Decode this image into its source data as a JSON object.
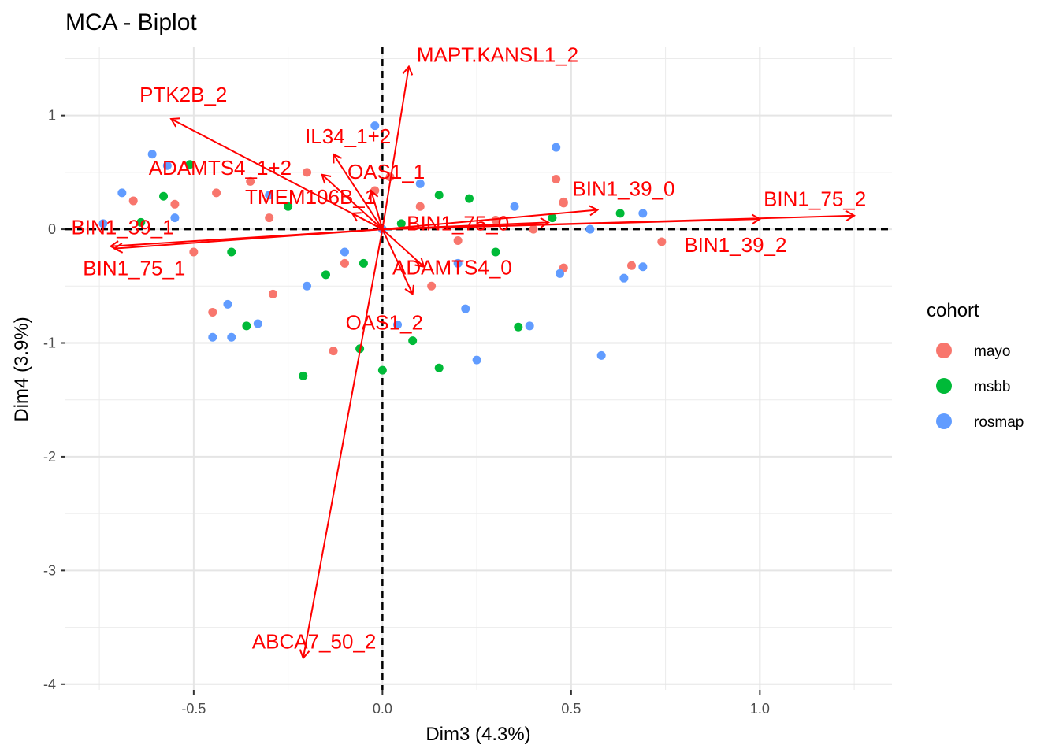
{
  "chart_data": {
    "type": "scatter",
    "title": "MCA - Biplot",
    "xlabel": "Dim3 (4.3%)",
    "ylabel": "Dim4 (3.9%)",
    "xlim": [
      -0.84,
      1.35
    ],
    "ylim": [
      -4.05,
      1.6
    ],
    "x_ticks": [
      -0.5,
      0.0,
      0.5,
      1.0
    ],
    "x_tick_labels": [
      "-0.5",
      "0.0",
      "0.5",
      "1.0"
    ],
    "y_ticks": [
      1,
      0,
      -1,
      -2,
      -3,
      -4
    ],
    "y_tick_labels": [
      "1",
      "0",
      "-1",
      "-2",
      "-3",
      "-4"
    ],
    "grid": true,
    "reference_lines": {
      "x": 0,
      "y": 0,
      "style": "dashed"
    },
    "legend": {
      "title": "cohort",
      "position": "right",
      "entries": [
        {
          "label": "mayo",
          "color": "#F8766D"
        },
        {
          "label": "msbb",
          "color": "#00BA38"
        },
        {
          "label": "rosmap",
          "color": "#619CFF"
        }
      ]
    },
    "series": [
      {
        "name": "mayo",
        "color": "#F8766D",
        "points": [
          [
            -0.66,
            0.25
          ],
          [
            -0.55,
            0.22
          ],
          [
            -0.44,
            0.32
          ],
          [
            -0.35,
            0.42
          ],
          [
            -0.2,
            0.5
          ],
          [
            0.02,
            0.46
          ],
          [
            0.46,
            0.44
          ],
          [
            0.48,
            0.24
          ],
          [
            0.48,
            0.23
          ],
          [
            0.74,
            -0.11
          ],
          [
            0.66,
            -0.32
          ],
          [
            -0.45,
            -0.73
          ],
          [
            -0.29,
            -0.57
          ],
          [
            -0.13,
            -1.07
          ],
          [
            0.13,
            -0.5
          ],
          [
            0.48,
            -0.34
          ],
          [
            -0.02,
            0.34
          ],
          [
            0.3,
            0.08
          ],
          [
            -0.1,
            -0.3
          ],
          [
            0.2,
            -0.1
          ],
          [
            -0.3,
            0.1
          ],
          [
            0.1,
            0.2
          ],
          [
            0.4,
            0.0
          ],
          [
            -0.5,
            -0.2
          ]
        ]
      },
      {
        "name": "msbb",
        "color": "#00BA38",
        "points": [
          [
            -0.64,
            0.06
          ],
          [
            -0.58,
            0.29
          ],
          [
            -0.51,
            0.57
          ],
          [
            -0.36,
            -0.85
          ],
          [
            -0.21,
            -1.29
          ],
          [
            -0.06,
            -1.05
          ],
          [
            0.0,
            -1.24
          ],
          [
            0.08,
            -0.98
          ],
          [
            0.15,
            -1.22
          ],
          [
            0.36,
            -0.86
          ],
          [
            0.63,
            0.14
          ],
          [
            0.23,
            0.27
          ],
          [
            -0.15,
            -0.4
          ],
          [
            0.05,
            0.05
          ],
          [
            -0.4,
            -0.2
          ],
          [
            0.3,
            -0.2
          ],
          [
            0.15,
            0.3
          ],
          [
            -0.25,
            0.2
          ],
          [
            0.45,
            0.1
          ],
          [
            -0.05,
            -0.3
          ]
        ]
      },
      {
        "name": "rosmap",
        "color": "#619CFF",
        "points": [
          [
            -0.74,
            0.05
          ],
          [
            -0.69,
            0.32
          ],
          [
            -0.61,
            0.66
          ],
          [
            -0.57,
            0.56
          ],
          [
            -0.45,
            -0.95
          ],
          [
            -0.41,
            -0.66
          ],
          [
            -0.4,
            -0.95
          ],
          [
            -0.33,
            -0.83
          ],
          [
            -0.02,
            0.91
          ],
          [
            0.04,
            -0.84
          ],
          [
            0.22,
            -0.7
          ],
          [
            0.25,
            -1.15
          ],
          [
            0.39,
            -0.85
          ],
          [
            0.46,
            0.72
          ],
          [
            0.58,
            -1.11
          ],
          [
            0.69,
            0.14
          ],
          [
            0.69,
            -0.33
          ],
          [
            0.64,
            -0.43
          ],
          [
            0.47,
            -0.39
          ],
          [
            -0.2,
            -0.5
          ],
          [
            0.1,
            0.4
          ],
          [
            -0.3,
            0.3
          ],
          [
            0.35,
            0.2
          ],
          [
            -0.1,
            -0.2
          ],
          [
            0.2,
            -0.3
          ],
          [
            0.55,
            0.0
          ],
          [
            -0.55,
            0.1
          ],
          [
            0.0,
            0.0
          ]
        ]
      }
    ],
    "variables": [
      {
        "label": "MAPT.KANSL1_2",
        "x": 0.07,
        "y": 1.43
      },
      {
        "label": "PTK2B_2",
        "x": -0.56,
        "y": 0.97
      },
      {
        "label": "IL34_1+2",
        "x": -0.13,
        "y": 0.66
      },
      {
        "label": "ADAMTS4_1+2",
        "x": -0.16,
        "y": 0.48
      },
      {
        "label": "OAS1_1",
        "x": -0.03,
        "y": 0.34
      },
      {
        "label": "TMEM106B_1",
        "x": -0.08,
        "y": 0.14
      },
      {
        "label": "BIN1_39_0",
        "x": 0.57,
        "y": 0.17
      },
      {
        "label": "BIN1_75_2",
        "x": 1.25,
        "y": 0.12
      },
      {
        "label": "BIN1_75_0",
        "x": 0.44,
        "y": 0.06
      },
      {
        "label": "BIN1_39_2",
        "x": 1.0,
        "y": 0.09
      },
      {
        "label": "BIN1_39_1",
        "x": -0.72,
        "y": -0.15
      },
      {
        "label": "BIN1_75_1",
        "x": -0.71,
        "y": -0.17
      },
      {
        "label": "ADAMTS4_0",
        "x": 0.11,
        "y": -0.33
      },
      {
        "label": "OAS1_2",
        "x": 0.08,
        "y": -0.57
      },
      {
        "label": "ABCA7_50_2",
        "x": -0.21,
        "y": -3.77
      }
    ]
  }
}
